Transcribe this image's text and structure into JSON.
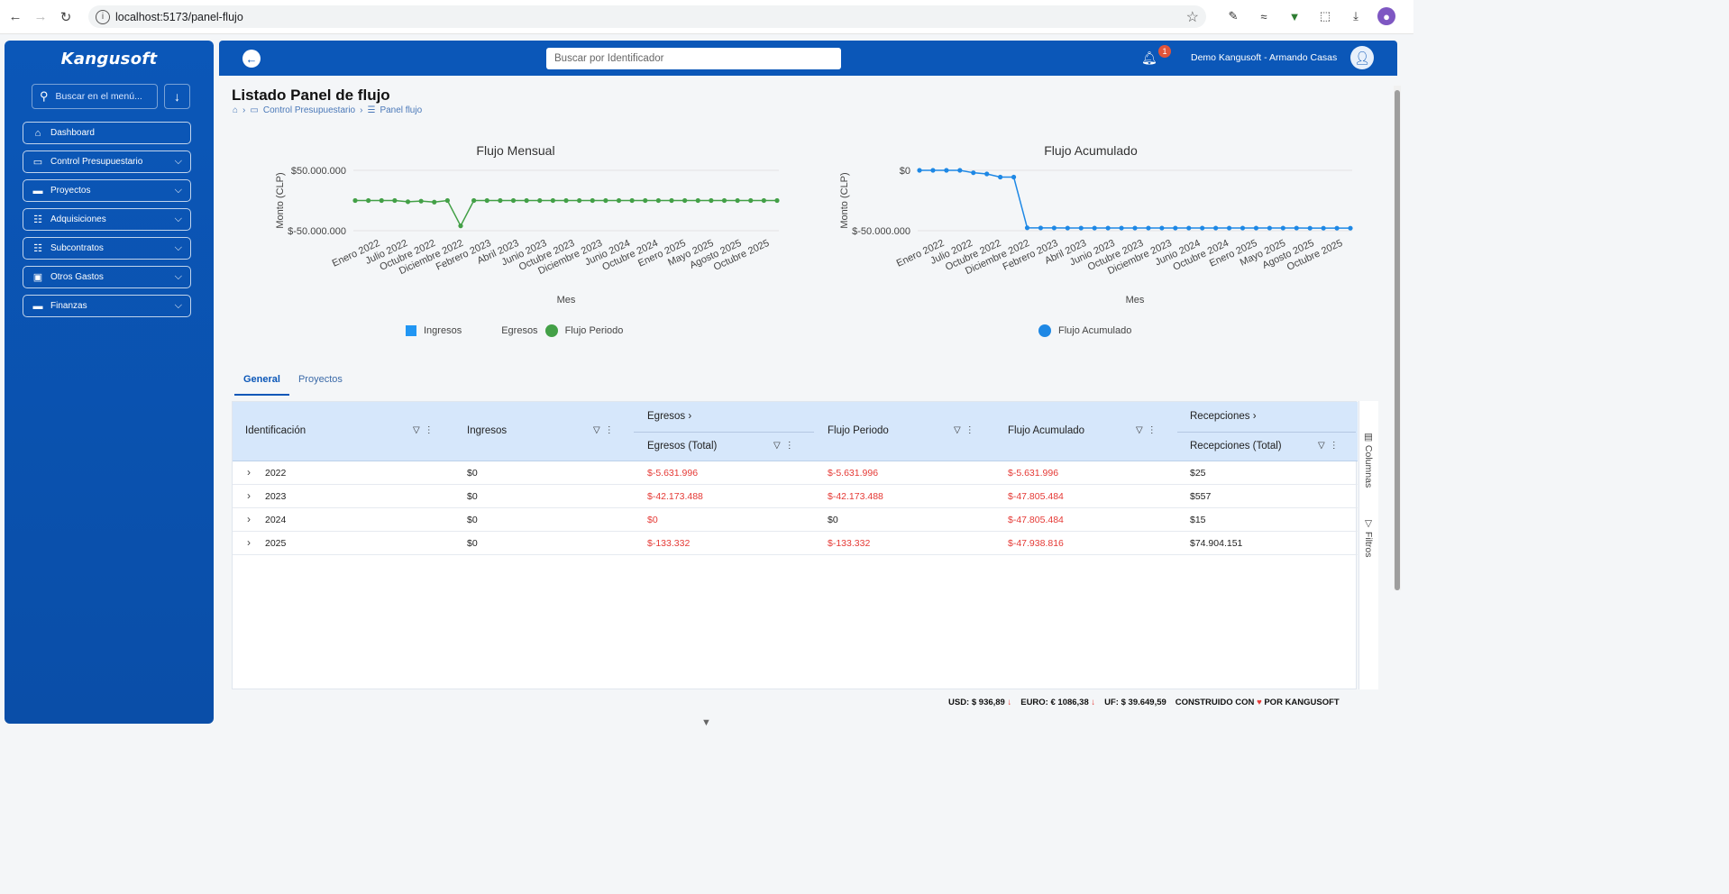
{
  "browser": {
    "url": "localhost:5173/panel-flujo",
    "back_icon": "←",
    "forward_icon": "→",
    "reload_icon": "↻"
  },
  "sidebar": {
    "brand": "Kangusoft",
    "search_placeholder": "Buscar en el menú...",
    "items": [
      {
        "label": "Dashboard",
        "icon": "home-icon",
        "has_submenu": false
      },
      {
        "label": "Control Presupuestario",
        "icon": "monitor-icon",
        "has_submenu": true
      },
      {
        "label": "Proyectos",
        "icon": "folder-icon",
        "has_submenu": true
      },
      {
        "label": "Adquisiciones",
        "icon": "hierarchy-icon",
        "has_submenu": true
      },
      {
        "label": "Subcontratos",
        "icon": "hierarchy-icon",
        "has_submenu": true
      },
      {
        "label": "Otros Gastos",
        "icon": "money-icon",
        "has_submenu": true
      },
      {
        "label": "Finanzas",
        "icon": "folder-icon",
        "has_submenu": true
      }
    ]
  },
  "header": {
    "search_placeholder": "Buscar por Identificador",
    "notification_count": "1",
    "user": "Demo Kangusoft - Armando Casas"
  },
  "page": {
    "title": "Listado Panel de flujo",
    "breadcrumb": [
      "Control Presupuestario",
      "Panel flujo"
    ]
  },
  "chart_data": [
    {
      "type": "line",
      "title": "Flujo Mensual",
      "xlabel": "Mes",
      "ylabel": "Monto (CLP)",
      "y_ticks": [
        "$50.000.000",
        "$-50.000.000"
      ],
      "x_tick_labels": [
        "Enero 2022",
        "Julio 2022",
        "Octubre 2022",
        "Diciembre 2022",
        "Febrero 2023",
        "Abril 2023",
        "Junio 2023",
        "Octubre 2023",
        "Diciembre 2023",
        "Junio 2024",
        "Octubre 2024",
        "Enero 2025",
        "Mayo 2025",
        "Agosto 2025",
        "Octubre 2025"
      ],
      "ylim": [
        -50000000,
        50000000
      ],
      "series": [
        {
          "name": "Ingresos",
          "values": [
            0,
            0,
            0,
            0,
            0,
            0,
            0,
            0,
            0,
            0,
            0,
            0,
            0,
            0,
            0,
            0,
            0,
            0,
            0,
            0,
            0,
            0,
            0,
            0,
            0,
            0,
            0,
            0,
            0,
            0,
            0,
            0,
            0
          ],
          "color": "#2196f3"
        },
        {
          "name": "Egresos",
          "values": [
            0,
            0,
            0,
            0,
            -2000000,
            -1000000,
            -2600000,
            0,
            -42000000,
            0,
            0,
            0,
            0,
            0,
            0,
            0,
            0,
            0,
            0,
            0,
            0,
            0,
            0,
            0,
            0,
            0,
            0,
            0,
            0,
            0,
            0,
            0,
            0
          ],
          "color": "#ff7043"
        },
        {
          "name": "Flujo Periodo",
          "values": [
            0,
            0,
            0,
            0,
            -2000000,
            -1000000,
            -2600000,
            0,
            -42000000,
            0,
            0,
            0,
            0,
            0,
            0,
            0,
            0,
            0,
            0,
            0,
            0,
            0,
            0,
            0,
            0,
            0,
            0,
            0,
            0,
            0,
            0,
            0,
            0
          ],
          "color": "#43a047"
        }
      ],
      "grid": true,
      "legend": "bottom"
    },
    {
      "type": "line",
      "title": "Flujo Acumulado",
      "xlabel": "Mes",
      "ylabel": "Monto (CLP)",
      "y_ticks": [
        "$0",
        "$-50.000.000"
      ],
      "x_tick_labels": [
        "Enero 2022",
        "Julio 2022",
        "Octubre 2022",
        "Diciembre 2022",
        "Febrero 2023",
        "Abril 2023",
        "Junio 2023",
        "Octubre 2023",
        "Diciembre 2023",
        "Junio 2024",
        "Octubre 2024",
        "Enero 2025",
        "Mayo 2025",
        "Agosto 2025",
        "Octubre 2025"
      ],
      "ylim": [
        -50000000,
        0
      ],
      "series": [
        {
          "name": "Flujo Acumulado",
          "values": [
            0,
            0,
            0,
            0,
            -2000000,
            -3000000,
            -5600000,
            -5600000,
            -47600000,
            -47700000,
            -47700000,
            -47800000,
            -47800000,
            -47800000,
            -47800000,
            -47800000,
            -47800000,
            -47800000,
            -47800000,
            -47800000,
            -47800000,
            -47800000,
            -47800000,
            -47800000,
            -47800000,
            -47800000,
            -47800000,
            -47800000,
            -47800000,
            -47900000,
            -47900000,
            -47900000,
            -47900000
          ],
          "color": "#1e88e5"
        }
      ],
      "grid": true,
      "legend": "bottom"
    }
  ],
  "tabs": [
    "General",
    "Proyectos"
  ],
  "grid": {
    "columns": {
      "identificacion": "Identificación",
      "ingresos": "Ingresos",
      "egresos_group": "Egresos",
      "egresos_total": "Egresos (Total)",
      "flujo_periodo": "Flujo Periodo",
      "flujo_acumulado": "Flujo Acumulado",
      "recepciones_group": "Recepciones",
      "recepciones_total": "Recepciones (Total)"
    },
    "rows": [
      {
        "id": "2022",
        "ingresos": "$0",
        "egresos": "$-5.631.996",
        "periodo": "$-5.631.996",
        "acumulado": "$-5.631.996",
        "recepciones": "$25"
      },
      {
        "id": "2023",
        "ingresos": "$0",
        "egresos": "$-42.173.488",
        "periodo": "$-42.173.488",
        "acumulado": "$-47.805.484",
        "recepciones": "$557"
      },
      {
        "id": "2024",
        "ingresos": "$0",
        "egresos": "$0",
        "periodo": "$0",
        "acumulado": "$-47.805.484",
        "recepciones": "$15"
      },
      {
        "id": "2025",
        "ingresos": "$0",
        "egresos": "$-133.332",
        "periodo": "$-133.332",
        "acumulado": "$-47.938.816",
        "recepciones": "$74.904.151"
      }
    ],
    "side_columns": "Columnas",
    "side_filters": "Filtros"
  },
  "footer": {
    "usd": "USD: $ 936,89",
    "euro": "EURO: € 1086,38",
    "uf": "UF: $ 39.649,59",
    "built": "CONSTRUIDO CON",
    "by": "POR KANGUSOFT"
  },
  "colors": {
    "primary": "#0b57b8",
    "negative": "#e53935",
    "flujo_periodo": "#43a047",
    "acumulado": "#1e88e5"
  }
}
